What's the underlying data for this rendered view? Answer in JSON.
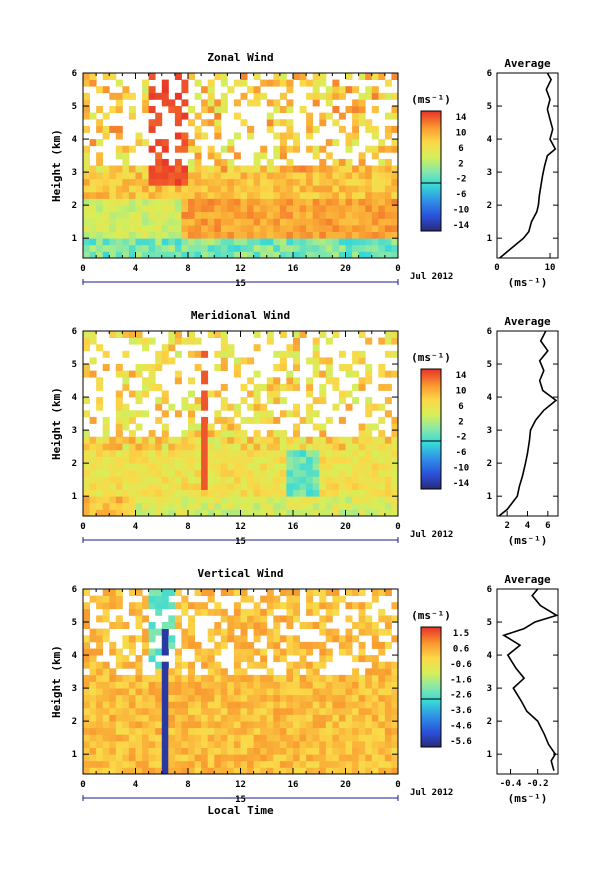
{
  "chart_data": [
    {
      "type": "heatmap",
      "title": "Zonal Wind",
      "ylabel": "Height (km)",
      "xlabel": "",
      "date_label": "15",
      "month_label": "Jul 2012",
      "x_ticks": [
        "0",
        "4",
        "8",
        "12",
        "16",
        "20",
        "0"
      ],
      "y_ticks": [
        "1",
        "2",
        "3",
        "4",
        "5",
        "6"
      ],
      "xlim": [
        0,
        24
      ],
      "ylim": [
        0.4,
        6
      ],
      "colorbar": {
        "unit": "(ms⁻¹)",
        "ticks": [
          "14",
          "10",
          "6",
          "2",
          "-2",
          "-6",
          "-10",
          "-14"
        ],
        "range": [
          -16,
          16
        ]
      },
      "average_panel": {
        "title": "Average",
        "xlabel": "(ms⁻¹)",
        "x_ticks": [
          "0",
          "10"
        ],
        "xlim": [
          0,
          11.5
        ],
        "heights": [
          0.4,
          0.6,
          0.8,
          1.0,
          1.2,
          1.5,
          1.8,
          2.0,
          2.3,
          2.6,
          2.9,
          3.2,
          3.5,
          3.7,
          4.0,
          4.3,
          4.6,
          4.9,
          5.2,
          5.5,
          5.8,
          6.0
        ],
        "values": [
          0.5,
          2.0,
          3.5,
          5.0,
          6.0,
          6.5,
          7.5,
          7.8,
          8.0,
          8.3,
          8.6,
          9.0,
          9.5,
          11.0,
          10.0,
          10.5,
          10.0,
          9.5,
          10.0,
          9.3,
          10.2,
          9.5
        ]
      }
    },
    {
      "type": "heatmap",
      "title": "Meridional Wind",
      "ylabel": "Height (km)",
      "xlabel": "",
      "date_label": "15",
      "month_label": "Jul 2012",
      "x_ticks": [
        "0",
        "4",
        "8",
        "12",
        "16",
        "20",
        "0"
      ],
      "y_ticks": [
        "1",
        "2",
        "3",
        "4",
        "5",
        "6"
      ],
      "xlim": [
        0,
        24
      ],
      "ylim": [
        0.4,
        6
      ],
      "colorbar": {
        "unit": "(ms⁻¹)",
        "ticks": [
          "14",
          "10",
          "6",
          "2",
          "-2",
          "-6",
          "-10",
          "-14"
        ],
        "range": [
          -16,
          16
        ]
      },
      "average_panel": {
        "title": "Average",
        "xlabel": "(ms⁻¹)",
        "x_ticks": [
          "2",
          "4",
          "6"
        ],
        "xlim": [
          1.0,
          7.0
        ],
        "heights": [
          0.4,
          0.6,
          0.8,
          1.0,
          1.3,
          1.6,
          2.0,
          2.3,
          2.7,
          3.0,
          3.3,
          3.6,
          3.9,
          4.2,
          4.5,
          4.8,
          5.1,
          5.4,
          5.7,
          6.0
        ],
        "values": [
          1.2,
          2.0,
          2.5,
          3.0,
          3.2,
          3.5,
          3.8,
          4.0,
          4.2,
          4.3,
          4.8,
          5.6,
          6.8,
          5.5,
          5.2,
          5.6,
          5.2,
          6.0,
          5.3,
          5.8
        ]
      }
    },
    {
      "type": "heatmap",
      "title": "Vertical Wind",
      "ylabel": "Height (km)",
      "xlabel": "Local Time",
      "date_label": "15",
      "month_label": "Jul 2012",
      "x_ticks": [
        "0",
        "4",
        "8",
        "12",
        "16",
        "20",
        "0"
      ],
      "y_ticks": [
        "1",
        "2",
        "3",
        "4",
        "5",
        "6"
      ],
      "xlim": [
        0,
        24
      ],
      "ylim": [
        0.4,
        6
      ],
      "colorbar": {
        "unit": "(ms⁻¹)",
        "ticks": [
          "1.5",
          "0.6",
          "-0.6",
          "-1.6",
          "-2.6",
          "-3.6",
          "-4.6",
          "-5.6"
        ],
        "range": [
          -6.0,
          2.0
        ]
      },
      "average_panel": {
        "title": "Average",
        "xlabel": "(ms⁻¹)",
        "x_ticks": [
          "-0.4",
          "-0.2"
        ],
        "xlim": [
          -0.5,
          -0.05
        ],
        "heights": [
          0.5,
          0.8,
          1.0,
          1.3,
          1.6,
          2.0,
          2.3,
          2.6,
          3.0,
          3.3,
          3.6,
          4.0,
          4.3,
          4.6,
          4.8,
          5.0,
          5.2,
          5.5,
          5.8,
          6.0
        ],
        "values": [
          -0.08,
          -0.1,
          -0.07,
          -0.12,
          -0.15,
          -0.2,
          -0.28,
          -0.32,
          -0.38,
          -0.3,
          -0.36,
          -0.42,
          -0.33,
          -0.45,
          -0.3,
          -0.22,
          -0.06,
          -0.18,
          -0.24,
          -0.2
        ]
      }
    }
  ]
}
